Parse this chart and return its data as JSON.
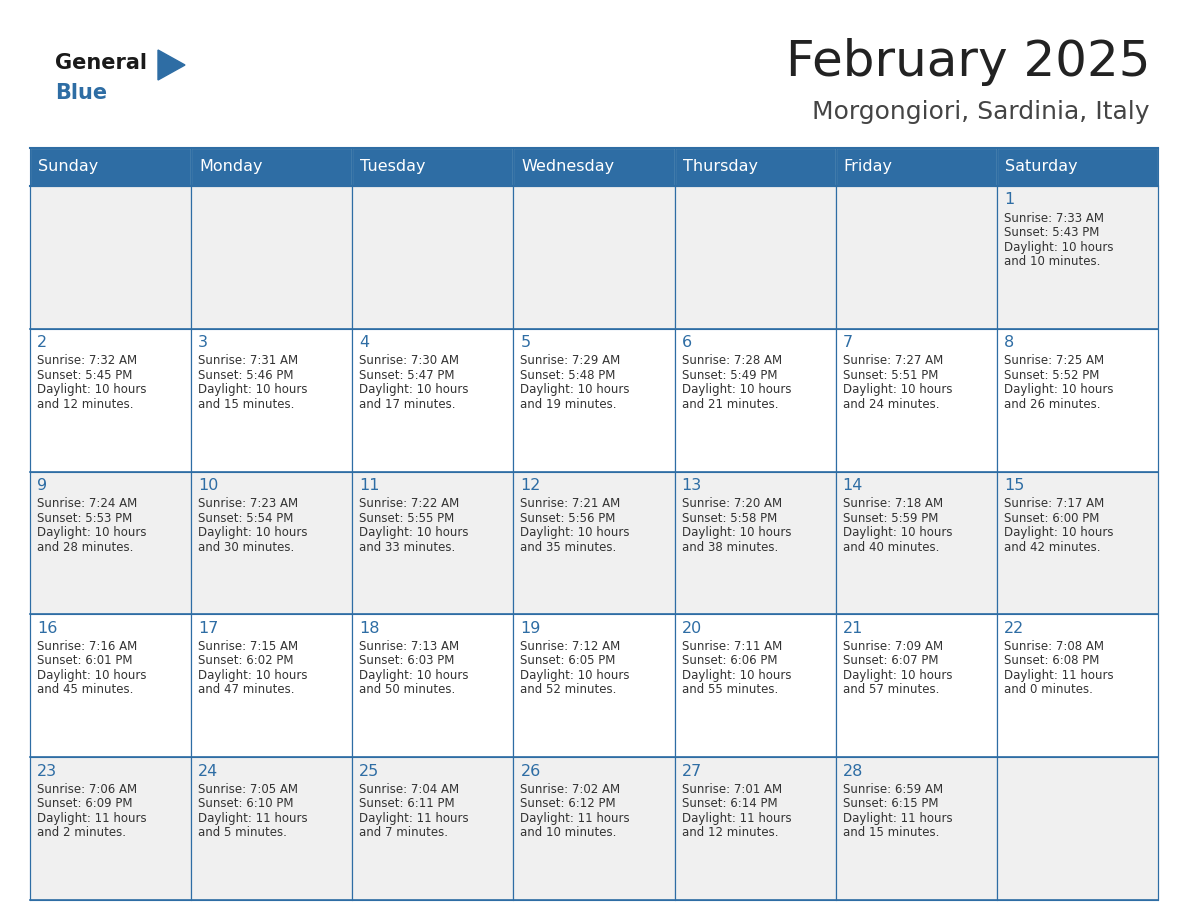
{
  "title": "February 2025",
  "subtitle": "Morgongiori, Sardinia, Italy",
  "header_bg": "#2E6DA4",
  "header_text_color": "#FFFFFF",
  "cell_bg_even": "#F0F0F0",
  "cell_bg_odd": "#FFFFFF",
  "border_color": "#2E6DA4",
  "day_headers": [
    "Sunday",
    "Monday",
    "Tuesday",
    "Wednesday",
    "Thursday",
    "Friday",
    "Saturday"
  ],
  "title_color": "#222222",
  "subtitle_color": "#444444",
  "days": [
    {
      "day": 1,
      "col": 6,
      "row": 0,
      "sunrise": "7:33 AM",
      "sunset": "5:43 PM",
      "daylight_line1": "10 hours",
      "daylight_line2": "and 10 minutes."
    },
    {
      "day": 2,
      "col": 0,
      "row": 1,
      "sunrise": "7:32 AM",
      "sunset": "5:45 PM",
      "daylight_line1": "10 hours",
      "daylight_line2": "and 12 minutes."
    },
    {
      "day": 3,
      "col": 1,
      "row": 1,
      "sunrise": "7:31 AM",
      "sunset": "5:46 PM",
      "daylight_line1": "10 hours",
      "daylight_line2": "and 15 minutes."
    },
    {
      "day": 4,
      "col": 2,
      "row": 1,
      "sunrise": "7:30 AM",
      "sunset": "5:47 PM",
      "daylight_line1": "10 hours",
      "daylight_line2": "and 17 minutes."
    },
    {
      "day": 5,
      "col": 3,
      "row": 1,
      "sunrise": "7:29 AM",
      "sunset": "5:48 PM",
      "daylight_line1": "10 hours",
      "daylight_line2": "and 19 minutes."
    },
    {
      "day": 6,
      "col": 4,
      "row": 1,
      "sunrise": "7:28 AM",
      "sunset": "5:49 PM",
      "daylight_line1": "10 hours",
      "daylight_line2": "and 21 minutes."
    },
    {
      "day": 7,
      "col": 5,
      "row": 1,
      "sunrise": "7:27 AM",
      "sunset": "5:51 PM",
      "daylight_line1": "10 hours",
      "daylight_line2": "and 24 minutes."
    },
    {
      "day": 8,
      "col": 6,
      "row": 1,
      "sunrise": "7:25 AM",
      "sunset": "5:52 PM",
      "daylight_line1": "10 hours",
      "daylight_line2": "and 26 minutes."
    },
    {
      "day": 9,
      "col": 0,
      "row": 2,
      "sunrise": "7:24 AM",
      "sunset": "5:53 PM",
      "daylight_line1": "10 hours",
      "daylight_line2": "and 28 minutes."
    },
    {
      "day": 10,
      "col": 1,
      "row": 2,
      "sunrise": "7:23 AM",
      "sunset": "5:54 PM",
      "daylight_line1": "10 hours",
      "daylight_line2": "and 30 minutes."
    },
    {
      "day": 11,
      "col": 2,
      "row": 2,
      "sunrise": "7:22 AM",
      "sunset": "5:55 PM",
      "daylight_line1": "10 hours",
      "daylight_line2": "and 33 minutes."
    },
    {
      "day": 12,
      "col": 3,
      "row": 2,
      "sunrise": "7:21 AM",
      "sunset": "5:56 PM",
      "daylight_line1": "10 hours",
      "daylight_line2": "and 35 minutes."
    },
    {
      "day": 13,
      "col": 4,
      "row": 2,
      "sunrise": "7:20 AM",
      "sunset": "5:58 PM",
      "daylight_line1": "10 hours",
      "daylight_line2": "and 38 minutes."
    },
    {
      "day": 14,
      "col": 5,
      "row": 2,
      "sunrise": "7:18 AM",
      "sunset": "5:59 PM",
      "daylight_line1": "10 hours",
      "daylight_line2": "and 40 minutes."
    },
    {
      "day": 15,
      "col": 6,
      "row": 2,
      "sunrise": "7:17 AM",
      "sunset": "6:00 PM",
      "daylight_line1": "10 hours",
      "daylight_line2": "and 42 minutes."
    },
    {
      "day": 16,
      "col": 0,
      "row": 3,
      "sunrise": "7:16 AM",
      "sunset": "6:01 PM",
      "daylight_line1": "10 hours",
      "daylight_line2": "and 45 minutes."
    },
    {
      "day": 17,
      "col": 1,
      "row": 3,
      "sunrise": "7:15 AM",
      "sunset": "6:02 PM",
      "daylight_line1": "10 hours",
      "daylight_line2": "and 47 minutes."
    },
    {
      "day": 18,
      "col": 2,
      "row": 3,
      "sunrise": "7:13 AM",
      "sunset": "6:03 PM",
      "daylight_line1": "10 hours",
      "daylight_line2": "and 50 minutes."
    },
    {
      "day": 19,
      "col": 3,
      "row": 3,
      "sunrise": "7:12 AM",
      "sunset": "6:05 PM",
      "daylight_line1": "10 hours",
      "daylight_line2": "and 52 minutes."
    },
    {
      "day": 20,
      "col": 4,
      "row": 3,
      "sunrise": "7:11 AM",
      "sunset": "6:06 PM",
      "daylight_line1": "10 hours",
      "daylight_line2": "and 55 minutes."
    },
    {
      "day": 21,
      "col": 5,
      "row": 3,
      "sunrise": "7:09 AM",
      "sunset": "6:07 PM",
      "daylight_line1": "10 hours",
      "daylight_line2": "and 57 minutes."
    },
    {
      "day": 22,
      "col": 6,
      "row": 3,
      "sunrise": "7:08 AM",
      "sunset": "6:08 PM",
      "daylight_line1": "11 hours",
      "daylight_line2": "and 0 minutes."
    },
    {
      "day": 23,
      "col": 0,
      "row": 4,
      "sunrise": "7:06 AM",
      "sunset": "6:09 PM",
      "daylight_line1": "11 hours",
      "daylight_line2": "and 2 minutes."
    },
    {
      "day": 24,
      "col": 1,
      "row": 4,
      "sunrise": "7:05 AM",
      "sunset": "6:10 PM",
      "daylight_line1": "11 hours",
      "daylight_line2": "and 5 minutes."
    },
    {
      "day": 25,
      "col": 2,
      "row": 4,
      "sunrise": "7:04 AM",
      "sunset": "6:11 PM",
      "daylight_line1": "11 hours",
      "daylight_line2": "and 7 minutes."
    },
    {
      "day": 26,
      "col": 3,
      "row": 4,
      "sunrise": "7:02 AM",
      "sunset": "6:12 PM",
      "daylight_line1": "11 hours",
      "daylight_line2": "and 10 minutes."
    },
    {
      "day": 27,
      "col": 4,
      "row": 4,
      "sunrise": "7:01 AM",
      "sunset": "6:14 PM",
      "daylight_line1": "11 hours",
      "daylight_line2": "and 12 minutes."
    },
    {
      "day": 28,
      "col": 5,
      "row": 4,
      "sunrise": "6:59 AM",
      "sunset": "6:15 PM",
      "daylight_line1": "11 hours",
      "daylight_line2": "and 15 minutes."
    }
  ]
}
